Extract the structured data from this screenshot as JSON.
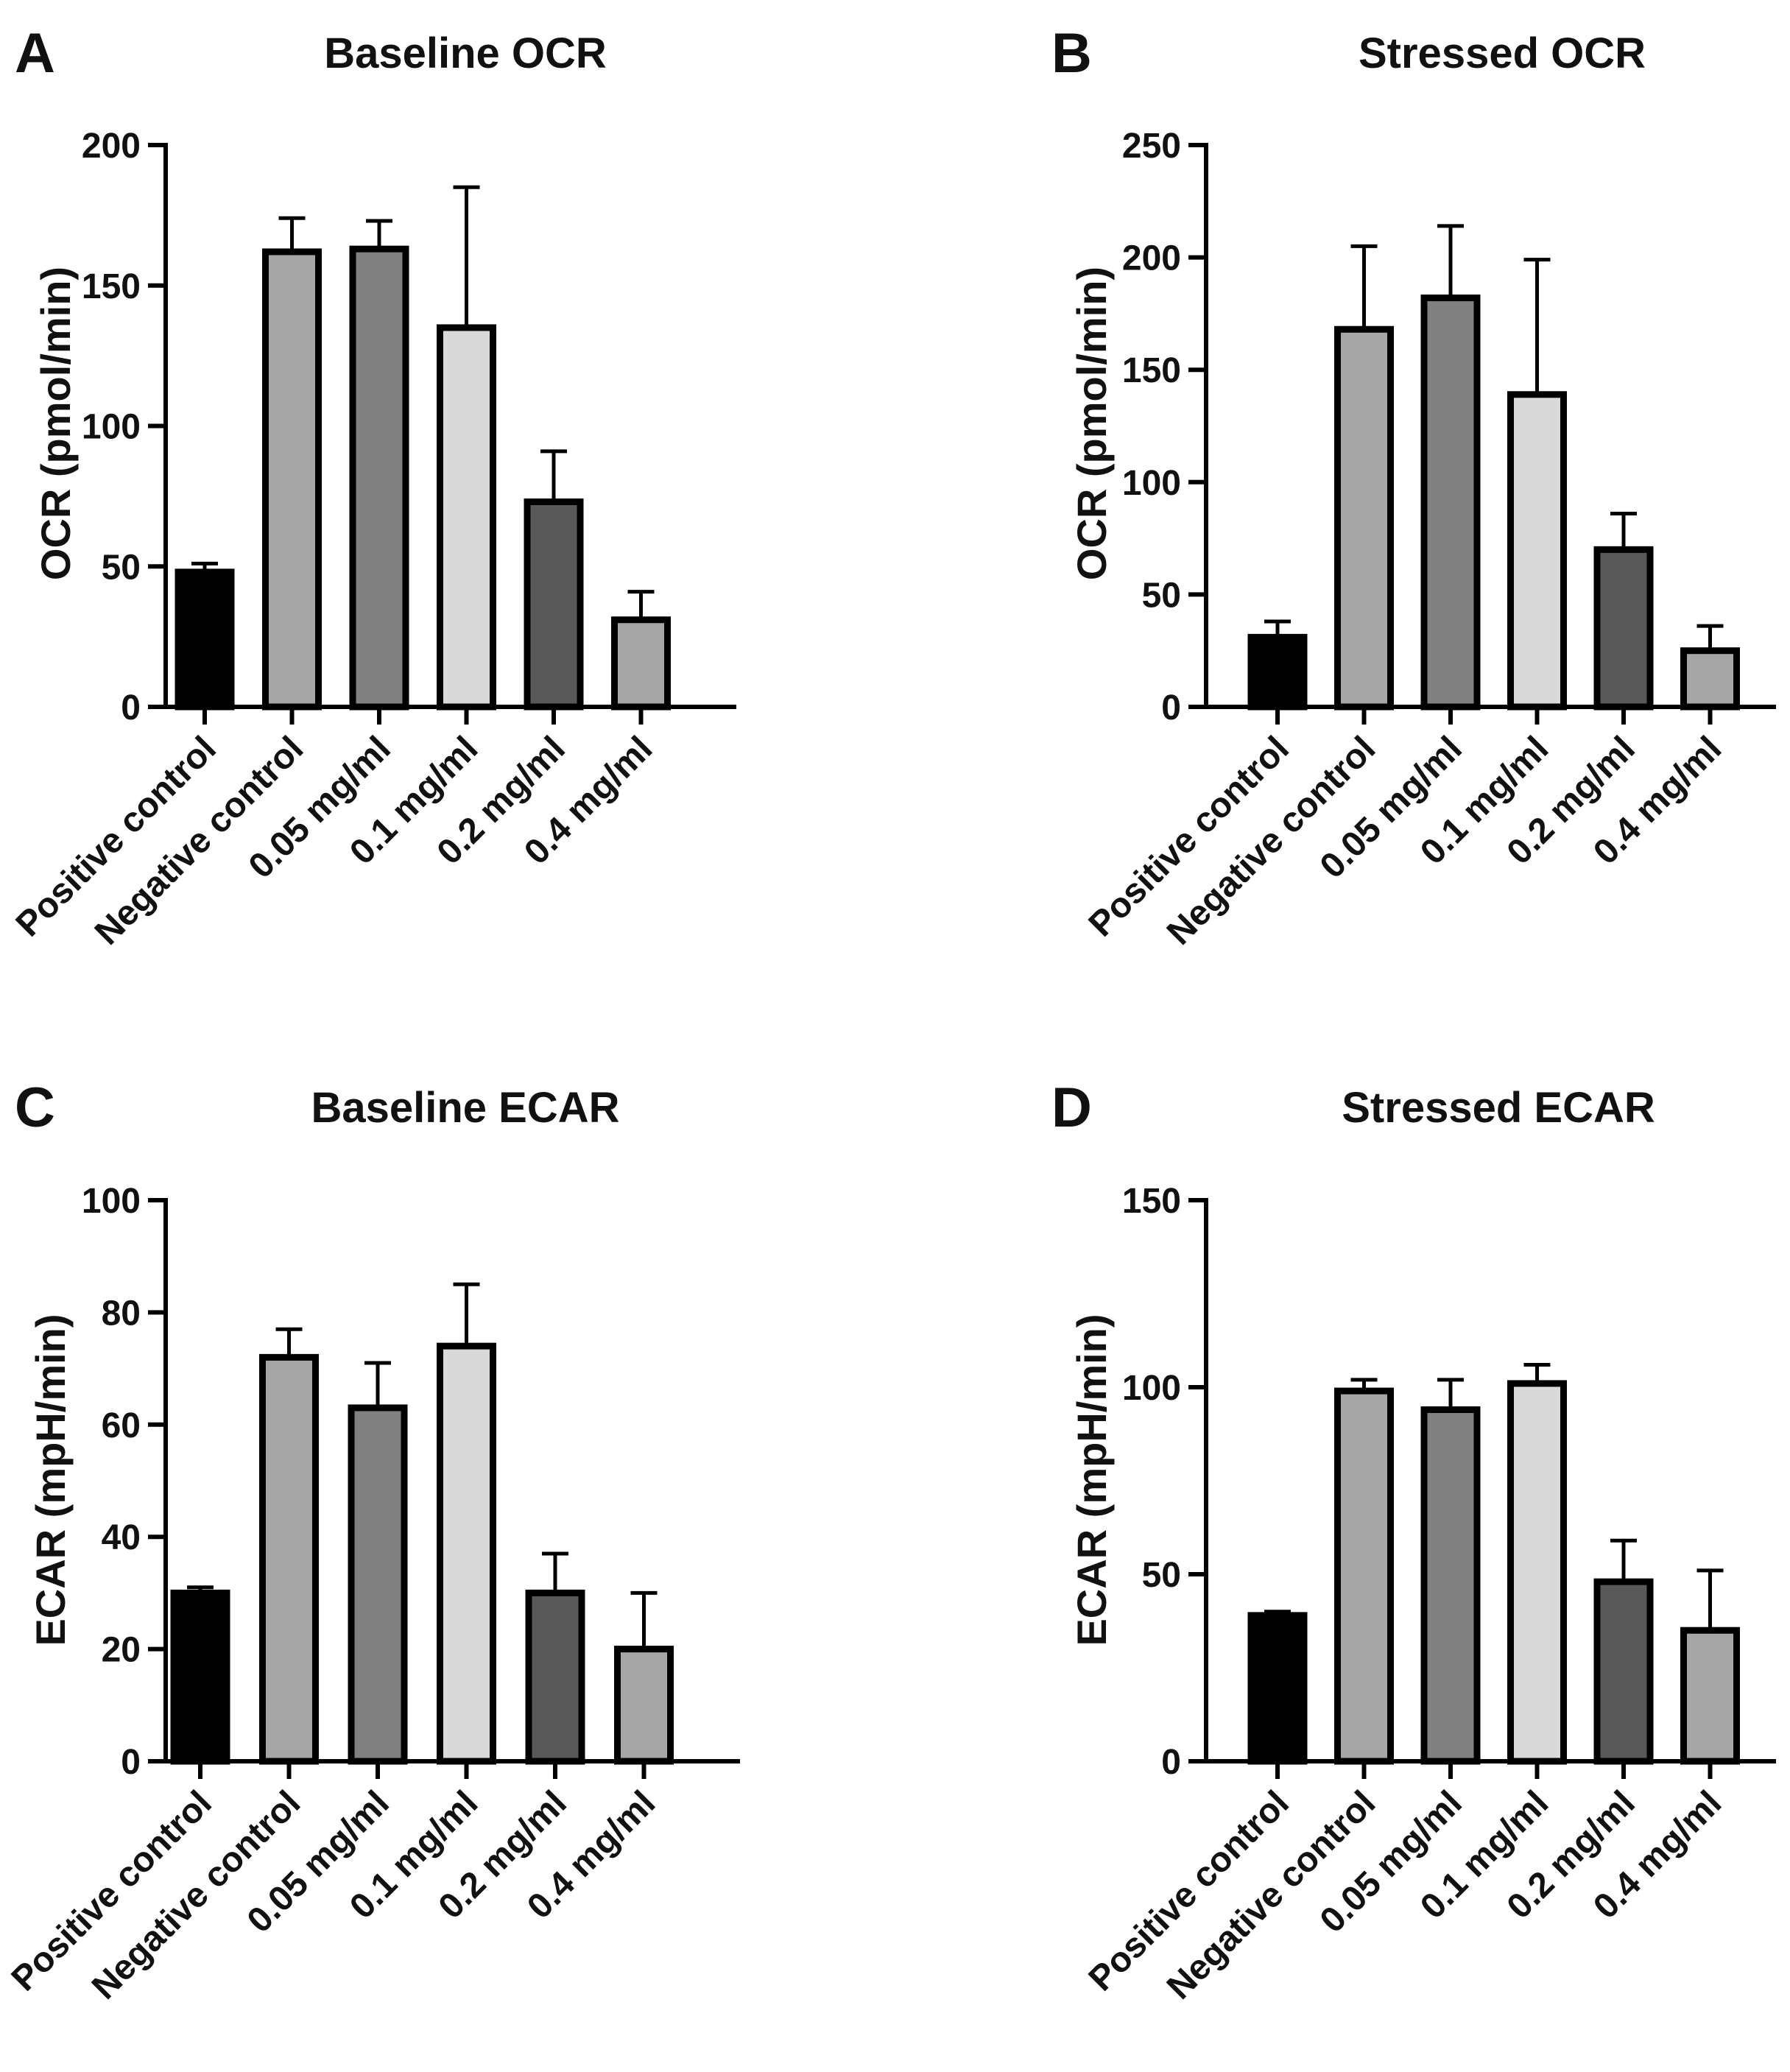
{
  "figure": {
    "panels": [
      {
        "letter": "A",
        "chart_data": {
          "type": "bar",
          "title": "Baseline OCR",
          "xlabel": "",
          "ylabel": "OCR (pmol/min)",
          "ylim": [
            0,
            200
          ],
          "yticks": [
            0,
            50,
            100,
            150,
            200
          ],
          "categories": [
            "Positive control",
            "Negative control",
            "0.05 mg/ml",
            "0.1 mg/ml",
            "0.2 mg/ml",
            "0.4 mg/ml"
          ],
          "values": [
            48,
            162,
            163,
            135,
            73,
            31
          ],
          "errors": [
            3,
            12,
            10,
            50,
            18,
            10
          ],
          "colors": [
            "#000000",
            "#a6a6a6",
            "#808080",
            "#d9d9d9",
            "#595959",
            "#a6a6a6"
          ],
          "grid": false
        }
      },
      {
        "letter": "B",
        "chart_data": {
          "type": "bar",
          "title": "Stressed OCR",
          "xlabel": "",
          "ylabel": "OCR (pmol/min)",
          "ylim": [
            0,
            250
          ],
          "yticks": [
            0,
            50,
            100,
            150,
            200,
            250
          ],
          "categories": [
            "Positive control",
            "Negative control",
            "0.05 mg/ml",
            "0.1 mg/ml",
            "0.2 mg/ml",
            "0.4 mg/ml"
          ],
          "values": [
            31,
            168,
            182,
            139,
            70,
            25
          ],
          "errors": [
            7,
            37,
            32,
            60,
            16,
            11
          ],
          "colors": [
            "#000000",
            "#a6a6a6",
            "#808080",
            "#d9d9d9",
            "#595959",
            "#a6a6a6"
          ],
          "grid": false
        }
      },
      {
        "letter": "C",
        "chart_data": {
          "type": "bar",
          "title": "Baseline ECAR",
          "xlabel": "",
          "ylabel": "ECAR (mpH/min)",
          "ylim": [
            0,
            100
          ],
          "yticks": [
            0,
            20,
            40,
            60,
            80,
            100
          ],
          "categories": [
            "Positive control",
            "Negative control",
            "0.05 mg/ml",
            "0.1 mg/ml",
            "0.2 mg/ml",
            "0.4 mg/ml"
          ],
          "values": [
            30,
            72,
            63,
            74,
            30,
            20
          ],
          "errors": [
            1,
            5,
            8,
            11,
            7,
            10
          ],
          "colors": [
            "#000000",
            "#a6a6a6",
            "#808080",
            "#d9d9d9",
            "#595959",
            "#a6a6a6"
          ],
          "grid": false
        }
      },
      {
        "letter": "D",
        "chart_data": {
          "type": "bar",
          "title": "Stressed ECAR",
          "xlabel": "",
          "ylabel": "ECAR (mpH/min)",
          "ylim": [
            0,
            150
          ],
          "yticks": [
            0,
            50,
            100,
            150
          ],
          "categories": [
            "Positive control",
            "Negative control",
            "0.05 mg/ml",
            "0.1 mg/ml",
            "0.2 mg/ml",
            "0.4 mg/ml"
          ],
          "values": [
            39,
            99,
            94,
            101,
            48,
            35
          ],
          "errors": [
            1,
            3,
            8,
            5,
            11,
            16
          ],
          "colors": [
            "#000000",
            "#a6a6a6",
            "#808080",
            "#d9d9d9",
            "#595959",
            "#a6a6a6"
          ],
          "grid": false
        }
      }
    ]
  }
}
